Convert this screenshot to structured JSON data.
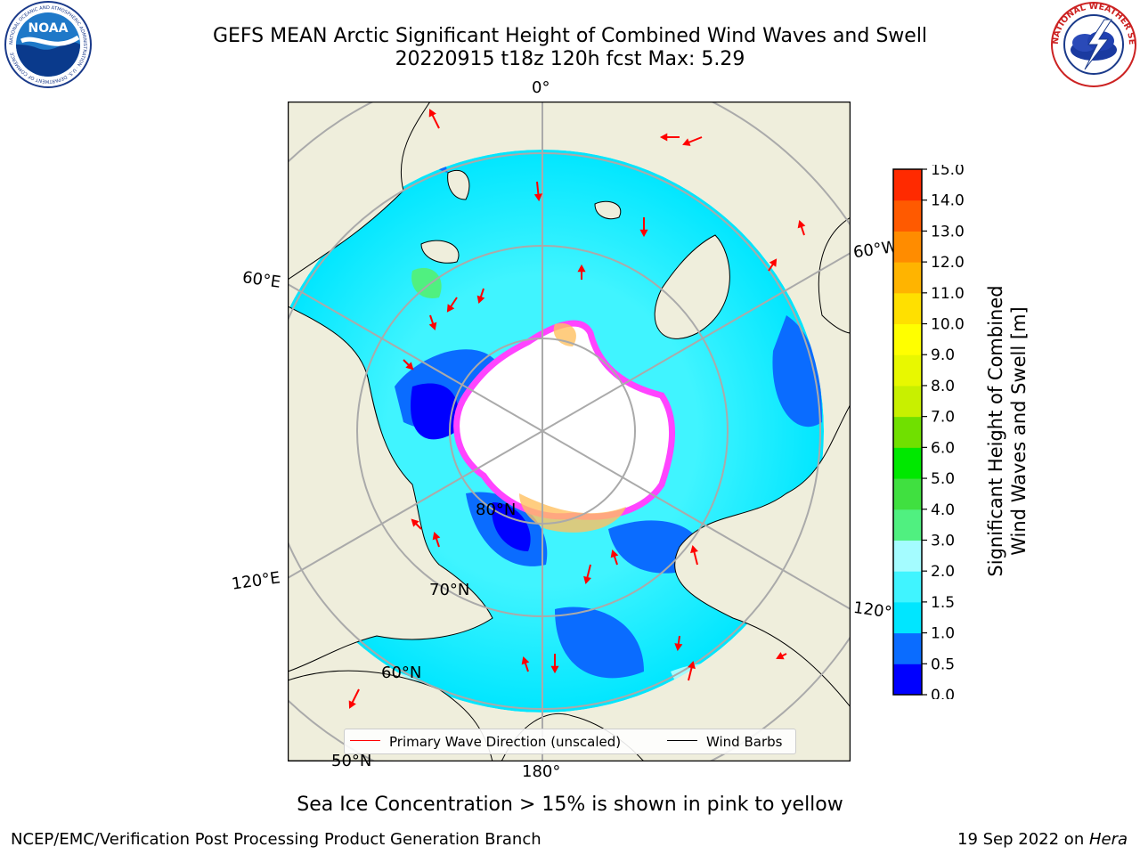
{
  "header": {
    "title_line1": "GEFS MEAN Arctic Significant Height of Combined Wind Waves and Swell",
    "title_line2": "20220915 t18z 120h fcst   Max: 5.29",
    "left_logo": {
      "name": "noaa-logo",
      "text": "NOAA",
      "ring_text": "NATIONAL OCEANIC AND ATMOSPHERIC ADMINISTRATION · U.S. DEPARTMENT OF COMMERCE"
    },
    "right_logo": {
      "name": "national-weather-service-logo",
      "ring_text": "NATIONAL WEATHER SERVICE"
    }
  },
  "map": {
    "longitude_labels": {
      "top": "0°",
      "bottom": "180°",
      "left_upper": "60°E",
      "left_lower": "120°E",
      "right_upper": "60°W",
      "right_lower": "120°W"
    },
    "latitude_labels": {
      "lat80": "80°N",
      "lat70": "70°N",
      "lat60": "60°N",
      "lat50": "50°N"
    },
    "colors": {
      "land": "#efeedc",
      "ice": "#ffffff",
      "ice_edge": "#ff44ff",
      "ice_high": "#ffc060",
      "graticule": "#aaaaaa",
      "wave_arrow": "#ff0000"
    }
  },
  "colorbar": {
    "label_line1": "Significant Height of Combined",
    "label_line2": "Wind Waves and Swell [m]",
    "ticks": [
      "0.0",
      "0.5",
      "1.0",
      "1.5",
      "2.0",
      "3.0",
      "4.0",
      "5.0",
      "6.0",
      "7.0",
      "8.0",
      "9.0",
      "10.0",
      "11.0",
      "12.0",
      "13.0",
      "14.0",
      "15.0"
    ],
    "colors": [
      "#0000ff",
      "#0a6cff",
      "#00e6ff",
      "#40f4ff",
      "#a4fcff",
      "#50f080",
      "#40e040",
      "#00e800",
      "#70e000",
      "#c8f000",
      "#e8f800",
      "#ffff00",
      "#ffe000",
      "#ffb400",
      "#ff8c00",
      "#ff5a00",
      "#ff2a00"
    ]
  },
  "legend": {
    "wave_direction": "Primary Wave Direction (unscaled)",
    "wind_barbs": "Wind Barbs"
  },
  "caption": "Sea Ice Concentration > 15% is shown in pink to yellow",
  "footer": {
    "left": "NCEP/EMC/Verification Post Processing Product Generation Branch",
    "right_date": "19 Sep 2022 on ",
    "right_host": "Hera"
  }
}
